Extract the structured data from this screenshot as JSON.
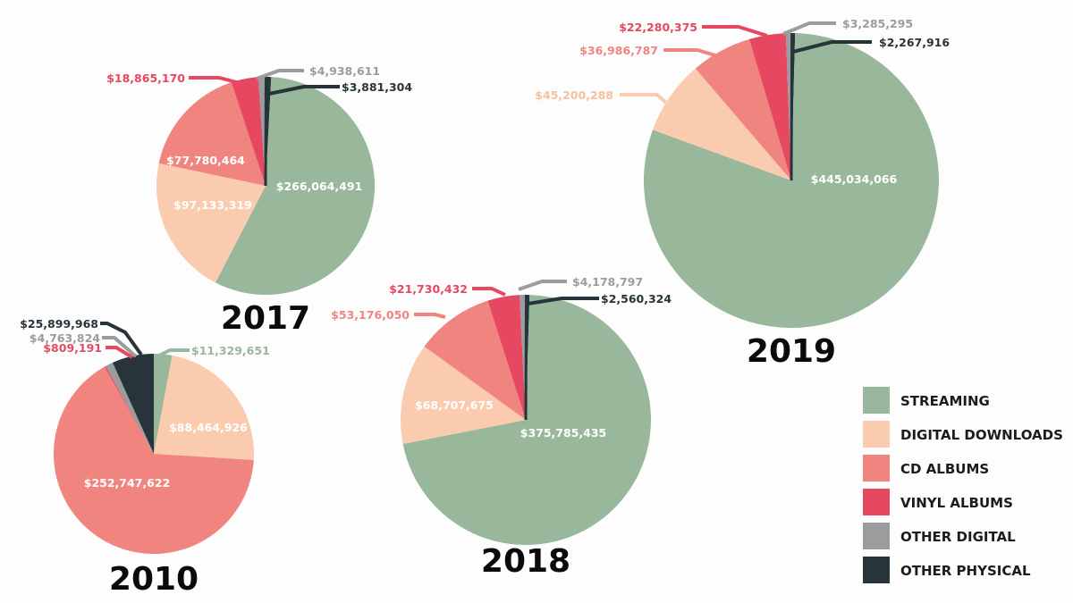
{
  "chart_data": {
    "type": "pie",
    "title": "",
    "categories": [
      "Streaming",
      "Digital Downloads",
      "CD Albums",
      "Vinyl Albums",
      "Other Digital",
      "Other Physical"
    ],
    "legend": {
      "placement": "bottom-right",
      "entries": [
        {
          "label": "STREAMING",
          "color": "#99b89b"
        },
        {
          "label": "DIGITAL DOWNLOADS",
          "color": "#facbaf"
        },
        {
          "label": "CD ALBUMS",
          "color": "#f08580"
        },
        {
          "label": "VINYL ALBUMS",
          "color": "#e64862"
        },
        {
          "label": "OTHER DIGITAL",
          "color": "#9b9c9e"
        },
        {
          "label": "OTHER PHYSICAL",
          "color": "#27343a"
        }
      ]
    },
    "colors": {
      "streaming": "#99b89b",
      "digital_downloads": "#facbaf",
      "cd_albums": "#f08580",
      "vinyl_albums": "#e64862",
      "other_digital": "#9b9c9e",
      "other_physical": "#27343a",
      "downloads_label": "#f6bfa0"
    },
    "charts": [
      {
        "year": "2010",
        "values": {
          "streaming": 11329651,
          "digital_downloads": 88464926,
          "cd_albums": 252747622,
          "vinyl_albums": 809191,
          "other_digital": 4763824,
          "other_physical": 25899968
        },
        "labels": {
          "streaming": "$11,329,651",
          "digital_downloads": "$88,464,926",
          "cd_albums": "$252,747,622",
          "vinyl_albums": "$809,191",
          "other_digital": "$4,763,824",
          "other_physical": "$25,899,968"
        }
      },
      {
        "year": "2017",
        "values": {
          "streaming": 266064491,
          "digital_downloads": 97133319,
          "cd_albums": 77780464,
          "vinyl_albums": 18865170,
          "other_digital": 4938611,
          "other_physical": 3881304
        },
        "labels": {
          "streaming": "$266,064,491",
          "digital_downloads": "$97,133,319",
          "cd_albums": "$77,780,464",
          "vinyl_albums": "$18,865,170",
          "other_digital": "$4,938,611",
          "other_physical": "$3,881,304"
        }
      },
      {
        "year": "2018",
        "values": {
          "streaming": 375785435,
          "digital_downloads": 68707675,
          "cd_albums": 53176050,
          "vinyl_albums": 21730432,
          "other_digital": 4178797,
          "other_physical": 2560324
        },
        "labels": {
          "streaming": "$375,785,435",
          "digital_downloads": "$68,707,675",
          "cd_albums": "$53,176,050",
          "vinyl_albums": "$21,730,432",
          "other_digital": "$4,178,797",
          "other_physical": "$2,560,324"
        }
      },
      {
        "year": "2019",
        "values": {
          "streaming": 445034066,
          "digital_downloads": 45200288,
          "cd_albums": 36986787,
          "vinyl_albums": 22280375,
          "other_digital": 3285295,
          "other_physical": 2267916
        },
        "labels": {
          "streaming": "$445,034,066",
          "digital_downloads": "$45,200,288",
          "cd_albums": "$36,986,787",
          "vinyl_albums": "$22,280,375",
          "other_digital": "$3,285,295",
          "other_physical": "$2,267,916"
        }
      }
    ]
  }
}
